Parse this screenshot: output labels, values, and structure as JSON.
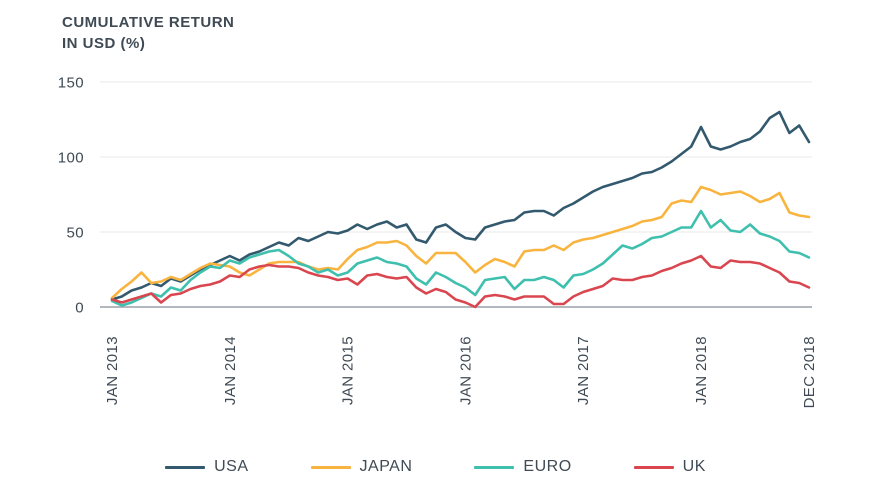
{
  "chart_data": {
    "type": "line",
    "title_lines": [
      "CUMULATIVE RETURN",
      "IN USD (%)"
    ],
    "ylabel": "Cumulative return in USD (%)",
    "ylim": [
      0,
      150
    ],
    "y_ticks": [
      150,
      100,
      50,
      0
    ],
    "grid": "horizontal",
    "x_unit": "month",
    "x_start": "JAN 2013",
    "x_end": "DEC 2018",
    "x_tick_labels": [
      "JAN 2013",
      "JAN 2014",
      "JAN 2015",
      "JAN 2016",
      "JAN 2017",
      "JAN 2018",
      "DEC 2018"
    ],
    "x_tick_month_index": [
      0,
      12,
      24,
      36,
      48,
      60,
      71
    ],
    "months_total": 72,
    "legend_position": "bottom",
    "series": [
      {
        "name": "USA",
        "color": "#33596E",
        "values": [
          5,
          7,
          11,
          13,
          16,
          14,
          19,
          17,
          21,
          25,
          28,
          31,
          34,
          31,
          35,
          37,
          40,
          43,
          41,
          46,
          44,
          47,
          50,
          49,
          51,
          55,
          52,
          55,
          57,
          53,
          55,
          45,
          43,
          53,
          55,
          50,
          46,
          45,
          53,
          55,
          57,
          58,
          63,
          64,
          64,
          61,
          66,
          69,
          73,
          77,
          80,
          82,
          84,
          86,
          89,
          90,
          93,
          97,
          102,
          107,
          120,
          107,
          105,
          107,
          110,
          112,
          117,
          126,
          130,
          116,
          121,
          110
        ]
      },
      {
        "name": "JAPAN",
        "color": "#F9B440",
        "values": [
          6,
          12,
          17,
          23,
          16,
          17,
          20,
          18,
          22,
          26,
          29,
          28,
          27,
          23,
          21,
          25,
          29,
          30,
          30,
          30,
          27,
          25,
          26,
          25,
          32,
          38,
          40,
          43,
          43,
          44,
          41,
          34,
          29,
          36,
          36,
          36,
          30,
          23,
          28,
          32,
          30,
          27,
          37,
          38,
          38,
          41,
          38,
          43,
          45,
          46,
          48,
          50,
          52,
          54,
          57,
          58,
          60,
          69,
          71,
          70,
          80,
          78,
          75,
          76,
          77,
          74,
          70,
          72,
          76,
          63,
          61,
          60
        ]
      },
      {
        "name": "EURO",
        "color": "#3FBFAE",
        "values": [
          4,
          1,
          3,
          6,
          9,
          7,
          13,
          11,
          18,
          23,
          27,
          26,
          31,
          29,
          33,
          35,
          37,
          38,
          34,
          29,
          27,
          23,
          25,
          21,
          23,
          29,
          31,
          33,
          30,
          29,
          27,
          19,
          15,
          23,
          20,
          16,
          13,
          8,
          18,
          19,
          20,
          12,
          18,
          18,
          20,
          18,
          13,
          21,
          22,
          25,
          29,
          35,
          41,
          39,
          42,
          46,
          47,
          50,
          53,
          53,
          64,
          53,
          58,
          51,
          50,
          55,
          49,
          47,
          44,
          37,
          36,
          33
        ]
      },
      {
        "name": "UK",
        "color": "#D9464F",
        "values": [
          5,
          3,
          5,
          7,
          9,
          3,
          8,
          9,
          12,
          14,
          15,
          17,
          21,
          20,
          25,
          27,
          28,
          27,
          27,
          26,
          23,
          21,
          20,
          18,
          19,
          15,
          21,
          22,
          20,
          19,
          20,
          13,
          9,
          12,
          10,
          5,
          3,
          0,
          7,
          8,
          7,
          5,
          7,
          7,
          7,
          2,
          2,
          7,
          10,
          12,
          14,
          19,
          18,
          18,
          20,
          21,
          24,
          26,
          29,
          31,
          34,
          27,
          26,
          31,
          30,
          30,
          29,
          26,
          23,
          17,
          16,
          13
        ]
      }
    ],
    "style": {
      "background": "#FFFFFF",
      "text_color": "#3F4A54",
      "grid_color": "#E9E9EB",
      "axis_color": "#9AA1A8"
    }
  }
}
